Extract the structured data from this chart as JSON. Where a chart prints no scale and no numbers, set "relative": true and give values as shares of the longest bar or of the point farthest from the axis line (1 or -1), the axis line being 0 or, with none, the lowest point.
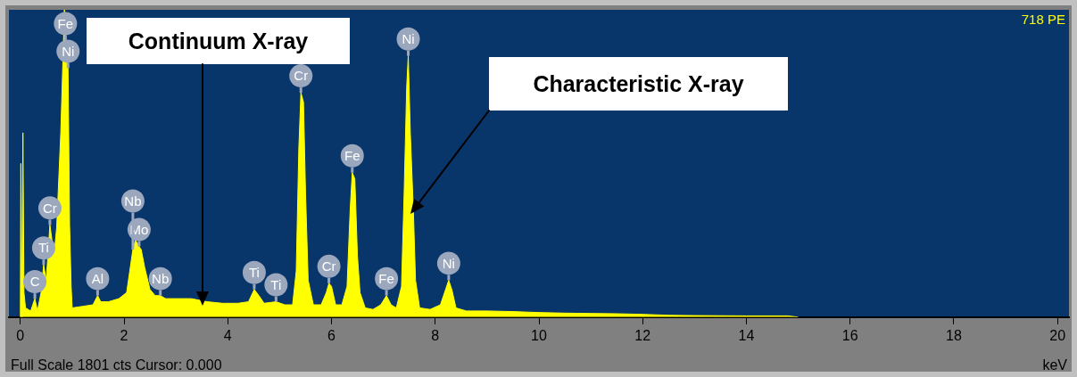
{
  "chart_data": {
    "type": "area",
    "relative": true,
    "xlabel": "keV",
    "xlim": [
      -0.22,
      20.22
    ],
    "xticks": [
      0,
      2,
      4,
      6,
      8,
      10,
      12,
      14,
      16,
      18,
      20
    ],
    "x": [
      0,
      0.01,
      0.03,
      0.05,
      0.07,
      0.1,
      0.2,
      0.28,
      0.33,
      0.4,
      0.45,
      0.5,
      0.57,
      0.65,
      0.7,
      0.78,
      0.85,
      0.87,
      0.92,
      0.95,
      0.98,
      1.0,
      1.2,
      1.4,
      1.49,
      1.55,
      1.7,
      1.9,
      2.05,
      2.17,
      2.22,
      2.29,
      2.33,
      2.4,
      2.5,
      2.6,
      2.7,
      2.8,
      3.0,
      3.3,
      3.6,
      3.9,
      4.2,
      4.4,
      4.51,
      4.6,
      4.7,
      4.93,
      5.1,
      5.25,
      5.32,
      5.37,
      5.41,
      5.46,
      5.5,
      5.55,
      5.65,
      5.8,
      5.9,
      5.95,
      6.0,
      6.08,
      6.2,
      6.3,
      6.36,
      6.4,
      6.45,
      6.5,
      6.55,
      6.65,
      6.8,
      6.95,
      7.06,
      7.15,
      7.25,
      7.35,
      7.4,
      7.45,
      7.48,
      7.52,
      7.58,
      7.62,
      7.7,
      7.9,
      8.1,
      8.2,
      8.26,
      8.32,
      8.4,
      8.6,
      9.0,
      9.5,
      10,
      10.5,
      11,
      11.5,
      12,
      12.5,
      13,
      14,
      14.8,
      15
    ],
    "series": [
      {
        "color": "#ffff00",
        "values": [
          0,
          0.5,
          0,
          0.6,
          0.08,
          0.03,
          0.02,
          0.06,
          0.02,
          0.08,
          0.17,
          0.12,
          0.3,
          0.2,
          0.29,
          0.6,
          1,
          0.9,
          0.81,
          0.3,
          0.1,
          0.03,
          0.035,
          0.04,
          0.07,
          0.05,
          0.05,
          0.06,
          0.08,
          0.22,
          0.25,
          0.23,
          0.22,
          0.16,
          0.09,
          0.07,
          0.07,
          0.06,
          0.06,
          0.06,
          0.05,
          0.045,
          0.045,
          0.05,
          0.09,
          0.07,
          0.045,
          0.05,
          0.04,
          0.04,
          0.15,
          0.55,
          0.73,
          0.7,
          0.4,
          0.12,
          0.04,
          0.04,
          0.08,
          0.11,
          0.1,
          0.04,
          0.04,
          0.1,
          0.35,
          0.47,
          0.45,
          0.2,
          0.08,
          0.03,
          0.025,
          0.04,
          0.07,
          0.04,
          0.03,
          0.1,
          0.4,
          0.75,
          0.85,
          0.6,
          0.34,
          0.12,
          0.03,
          0.025,
          0.04,
          0.09,
          0.12,
          0.09,
          0.03,
          0.02,
          0.02,
          0.018,
          0.015,
          0.013,
          0.012,
          0.011,
          0.009,
          0.006,
          0.005,
          0.004,
          0.004,
          0
        ]
      }
    ],
    "annotations": [
      "718 PE",
      "Full Scale 1801 cts Cursor: 0.000",
      "Continuum X-ray",
      "Characteristic X-ray",
      {
        "text": "C",
        "x": 0.28,
        "y": 0.06
      },
      {
        "text": "Ti",
        "x": 0.45,
        "y": 0.17
      },
      {
        "text": "Cr",
        "x": 0.57,
        "y": 0.3
      },
      {
        "text": "Ni",
        "x": 0.92,
        "y": 0.81
      },
      {
        "text": "Fe",
        "x": 0.87,
        "y": 0.9
      },
      {
        "text": "Al",
        "x": 1.49,
        "y": 0.07
      },
      {
        "text": "Mo",
        "x": 2.29,
        "y": 0.23
      },
      {
        "text": "Nb",
        "x": 2.17,
        "y": 0.22
      },
      {
        "text": "Nb",
        "x": 2.7,
        "y": 0.07
      },
      {
        "text": "Ti",
        "x": 4.51,
        "y": 0.09
      },
      {
        "text": "Ti",
        "x": 4.93,
        "y": 0.05
      },
      {
        "text": "Cr",
        "x": 5.41,
        "y": 0.73
      },
      {
        "text": "Cr",
        "x": 5.95,
        "y": 0.11
      },
      {
        "text": "Fe",
        "x": 6.4,
        "y": 0.47
      },
      {
        "text": "Fe",
        "x": 7.06,
        "y": 0.07
      },
      {
        "text": "Ni",
        "x": 7.48,
        "y": 0.85
      },
      {
        "text": "Ni",
        "x": 8.26,
        "y": 0.12
      }
    ]
  }
}
